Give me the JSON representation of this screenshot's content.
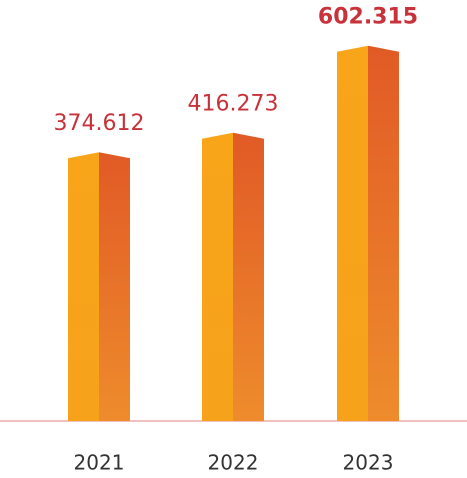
{
  "chart_data": {
    "type": "bar",
    "categories": [
      "2021",
      "2022",
      "2023"
    ],
    "values": [
      374.612,
      416.273,
      602.315
    ],
    "color": "#f7a21b",
    "ylim": [
      -200,
      700
    ]
  }
}
